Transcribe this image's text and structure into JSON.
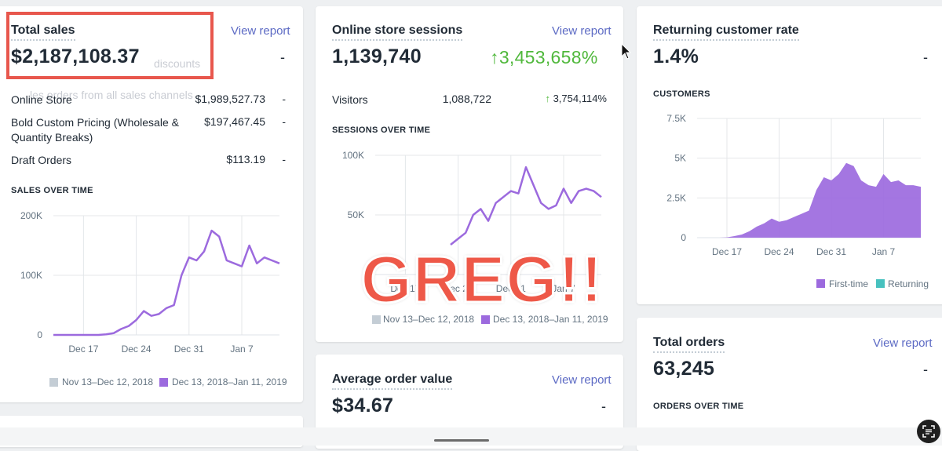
{
  "total_sales": {
    "title": "Total sales",
    "view_report": "View report",
    "value": "$2,187,108.37",
    "delta": "-",
    "faded_line1": "discounts",
    "faded_line2": "les orders from all sales channels",
    "rows": [
      {
        "label": "Online Store",
        "value": "$1,989,527.73",
        "delta": "-"
      },
      {
        "label": "Bold Custom Pricing (Wholesale & Quantity Breaks)",
        "value": "$197,467.45",
        "delta": "-"
      },
      {
        "label": "Draft Orders",
        "value": "$113.19",
        "delta": "-"
      }
    ],
    "chart_caption": "SALES OVER TIME",
    "legend": [
      "Nov 13–Dec 12, 2018",
      "Dec 13, 2018–Jan 11, 2019"
    ]
  },
  "sessions": {
    "title": "Online store sessions",
    "view_report": "View report",
    "value": "1,139,740",
    "delta": "3,453,658%",
    "visitors_label": "Visitors",
    "visitors_value": "1,088,722",
    "visitors_delta": "3,754,114%",
    "chart_caption": "SESSIONS OVER TIME",
    "legend": [
      "Nov 13–Dec 12, 2018",
      "Dec 13, 2018–Jan 11, 2019"
    ]
  },
  "returning": {
    "title": "Returning customer rate",
    "value": "1.4%",
    "delta": "-",
    "chart_caption": "CUSTOMERS",
    "legend": [
      "First-time",
      "Returning"
    ]
  },
  "aov": {
    "title": "Average order value",
    "view_report": "View report",
    "value": "$34.67",
    "delta": "-"
  },
  "orders": {
    "title": "Total orders",
    "view_report": "View report",
    "value": "63,245",
    "delta": "-",
    "chart_caption": "ORDERS OVER TIME"
  },
  "overlay": {
    "text": "GREG!!"
  },
  "colors": {
    "series_current": "#9c6ade",
    "series_previous": "#c4cdd5",
    "returning": "#47c1bf",
    "highlight": "#e8574d",
    "positive": "#50b83c"
  },
  "chart_data": [
    {
      "type": "line",
      "title": "SALES OVER TIME",
      "x_ticks": [
        "Dec 17",
        "Dec 24",
        "Dec 31",
        "Jan 7"
      ],
      "y_ticks": [
        "0",
        "100K",
        "200K"
      ],
      "ylim": [
        0,
        200000
      ],
      "grid": true,
      "legend_position": "bottom",
      "series": [
        {
          "name": "Dec 13, 2018–Jan 11, 2019",
          "values": [
            0,
            0,
            0,
            0,
            0,
            0,
            0,
            1000,
            3000,
            10000,
            15000,
            25000,
            40000,
            32000,
            35000,
            45000,
            50000,
            100000,
            130000,
            125000,
            140000,
            175000,
            165000,
            125000,
            120000,
            115000,
            150000,
            120000,
            130000,
            125000,
            120000
          ]
        }
      ]
    },
    {
      "type": "line",
      "title": "SESSIONS OVER TIME",
      "x_ticks": [
        "Dec 17",
        "Dec 24",
        "Dec 31",
        "Jan 7"
      ],
      "y_ticks": [
        "50K",
        "100K"
      ],
      "ylim": [
        0,
        100000
      ],
      "grid": true,
      "legend_position": "bottom",
      "series": [
        {
          "name": "Dec 13, 2018–Jan 11, 2019",
          "values": [
            null,
            null,
            null,
            null,
            null,
            null,
            null,
            null,
            null,
            null,
            25000,
            30000,
            35000,
            50000,
            55000,
            45000,
            60000,
            65000,
            70000,
            68000,
            90000,
            75000,
            60000,
            55000,
            58000,
            72000,
            60000,
            70000,
            72000,
            70000,
            65000
          ]
        }
      ]
    },
    {
      "type": "area",
      "title": "CUSTOMERS",
      "x_ticks": [
        "Dec 17",
        "Dec 24",
        "Dec 31",
        "Jan 7"
      ],
      "y_ticks": [
        "0",
        "2.5K",
        "5K",
        "7.5K"
      ],
      "ylim": [
        0,
        7500
      ],
      "grid": true,
      "legend_position": "bottom-right",
      "series": [
        {
          "name": "First-time",
          "values": [
            0,
            0,
            0,
            0,
            20,
            100,
            200,
            400,
            700,
            900,
            1200,
            1000,
            1100,
            1300,
            1500,
            1700,
            3000,
            3800,
            3600,
            4000,
            4700,
            4500,
            3600,
            3300,
            3200,
            4000,
            3500,
            3600,
            3300,
            3300,
            3200
          ]
        }
      ]
    }
  ]
}
